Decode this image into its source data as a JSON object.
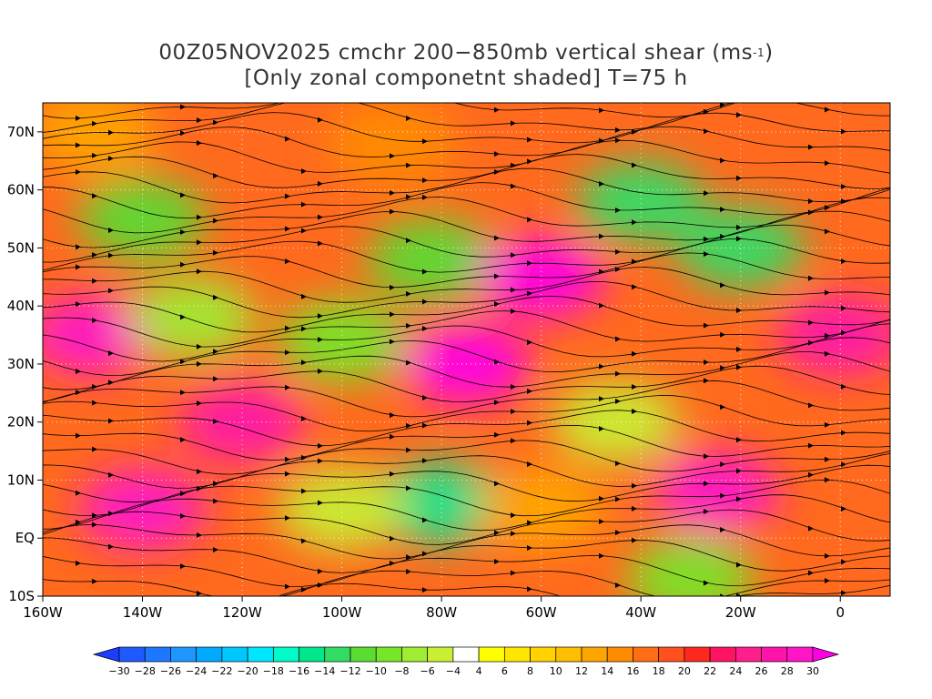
{
  "title": {
    "line1": "00Z05NOV2025 cmchr 200−850mb vertical shear (ms",
    "line1_unit_sup": "-1",
    "line1_end": ")",
    "line2": "[Only zonal componetnt shaded] T=75 h"
  },
  "map": {
    "lon_range": [
      -160,
      10
    ],
    "lat_range": [
      -10,
      75
    ],
    "lon_ticks": [
      {
        "value": -160,
        "label": "160W"
      },
      {
        "value": -140,
        "label": "140W"
      },
      {
        "value": -120,
        "label": "120W"
      },
      {
        "value": -100,
        "label": "100W"
      },
      {
        "value": -80,
        "label": "80W"
      },
      {
        "value": -60,
        "label": "60W"
      },
      {
        "value": -40,
        "label": "40W"
      },
      {
        "value": -20,
        "label": "20W"
      },
      {
        "value": 0,
        "label": "0"
      }
    ],
    "lat_ticks": [
      {
        "value": 70,
        "label": "70N"
      },
      {
        "value": 60,
        "label": "60N"
      },
      {
        "value": 50,
        "label": "50N"
      },
      {
        "value": 40,
        "label": "40N"
      },
      {
        "value": 30,
        "label": "30N"
      },
      {
        "value": 20,
        "label": "20N"
      },
      {
        "value": 10,
        "label": "10N"
      },
      {
        "value": 0,
        "label": "EQ"
      },
      {
        "value": -10,
        "label": "10S"
      }
    ],
    "field_regions": [
      {
        "lon": -150,
        "lat": 35,
        "value": 28
      },
      {
        "lon": -140,
        "lat": 55,
        "value": -12
      },
      {
        "lon": -130,
        "lat": 38,
        "value": -8
      },
      {
        "lon": -120,
        "lat": 20,
        "value": 26
      },
      {
        "lon": -100,
        "lat": 34,
        "value": -10
      },
      {
        "lon": -82,
        "lat": 48,
        "value": -12
      },
      {
        "lon": -75,
        "lat": 30,
        "value": 30
      },
      {
        "lon": -60,
        "lat": 45,
        "value": 30
      },
      {
        "lon": -45,
        "lat": 20,
        "value": -6
      },
      {
        "lon": -40,
        "lat": 58,
        "value": -14
      },
      {
        "lon": -20,
        "lat": 50,
        "value": -14
      },
      {
        "lon": -80,
        "lat": 6,
        "value": -16
      },
      {
        "lon": -100,
        "lat": 5,
        "value": -6
      },
      {
        "lon": -25,
        "lat": 8,
        "value": 28
      },
      {
        "lon": -30,
        "lat": -7,
        "value": -10
      },
      {
        "lon": -140,
        "lat": 5,
        "value": 28
      },
      {
        "lon": -60,
        "lat": 5,
        "value": 12
      },
      {
        "lon": 0,
        "lat": 35,
        "value": 26
      },
      {
        "lon": -150,
        "lat": 70,
        "value": 12
      },
      {
        "lon": -90,
        "lat": 68,
        "value": 14
      }
    ]
  },
  "colorbar": {
    "levels": [
      -30,
      -28,
      -26,
      -24,
      -22,
      -20,
      -18,
      -16,
      -14,
      -12,
      -10,
      -8,
      -6,
      -4,
      4,
      6,
      8,
      10,
      12,
      14,
      16,
      18,
      20,
      22,
      24,
      26,
      28,
      30
    ],
    "labels": [
      "−30",
      "−28",
      "−26",
      "−24",
      "−22",
      "−20",
      "−18",
      "−16",
      "−14",
      "−12",
      "−10",
      "−8",
      "−6",
      "−4",
      "4",
      "6",
      "8",
      "10",
      "12",
      "14",
      "16",
      "18",
      "20",
      "22",
      "24",
      "26",
      "28",
      "30"
    ],
    "colors": [
      "#1e3cff",
      "#1e5aff",
      "#1e78ff",
      "#1e96ff",
      "#00aaff",
      "#00c8ff",
      "#00e6ff",
      "#00fac8",
      "#00e68c",
      "#32dc64",
      "#5adc32",
      "#78e628",
      "#a0ec32",
      "#c8f032",
      "#ffffff",
      "#ffff00",
      "#ffe600",
      "#ffd200",
      "#ffbe00",
      "#ffa500",
      "#ff8c00",
      "#ff6e14",
      "#ff501e",
      "#ff281e",
      "#ff1464",
      "#ff1e8c",
      "#ff14aa",
      "#ff14c8",
      "#ff00e6"
    ]
  }
}
